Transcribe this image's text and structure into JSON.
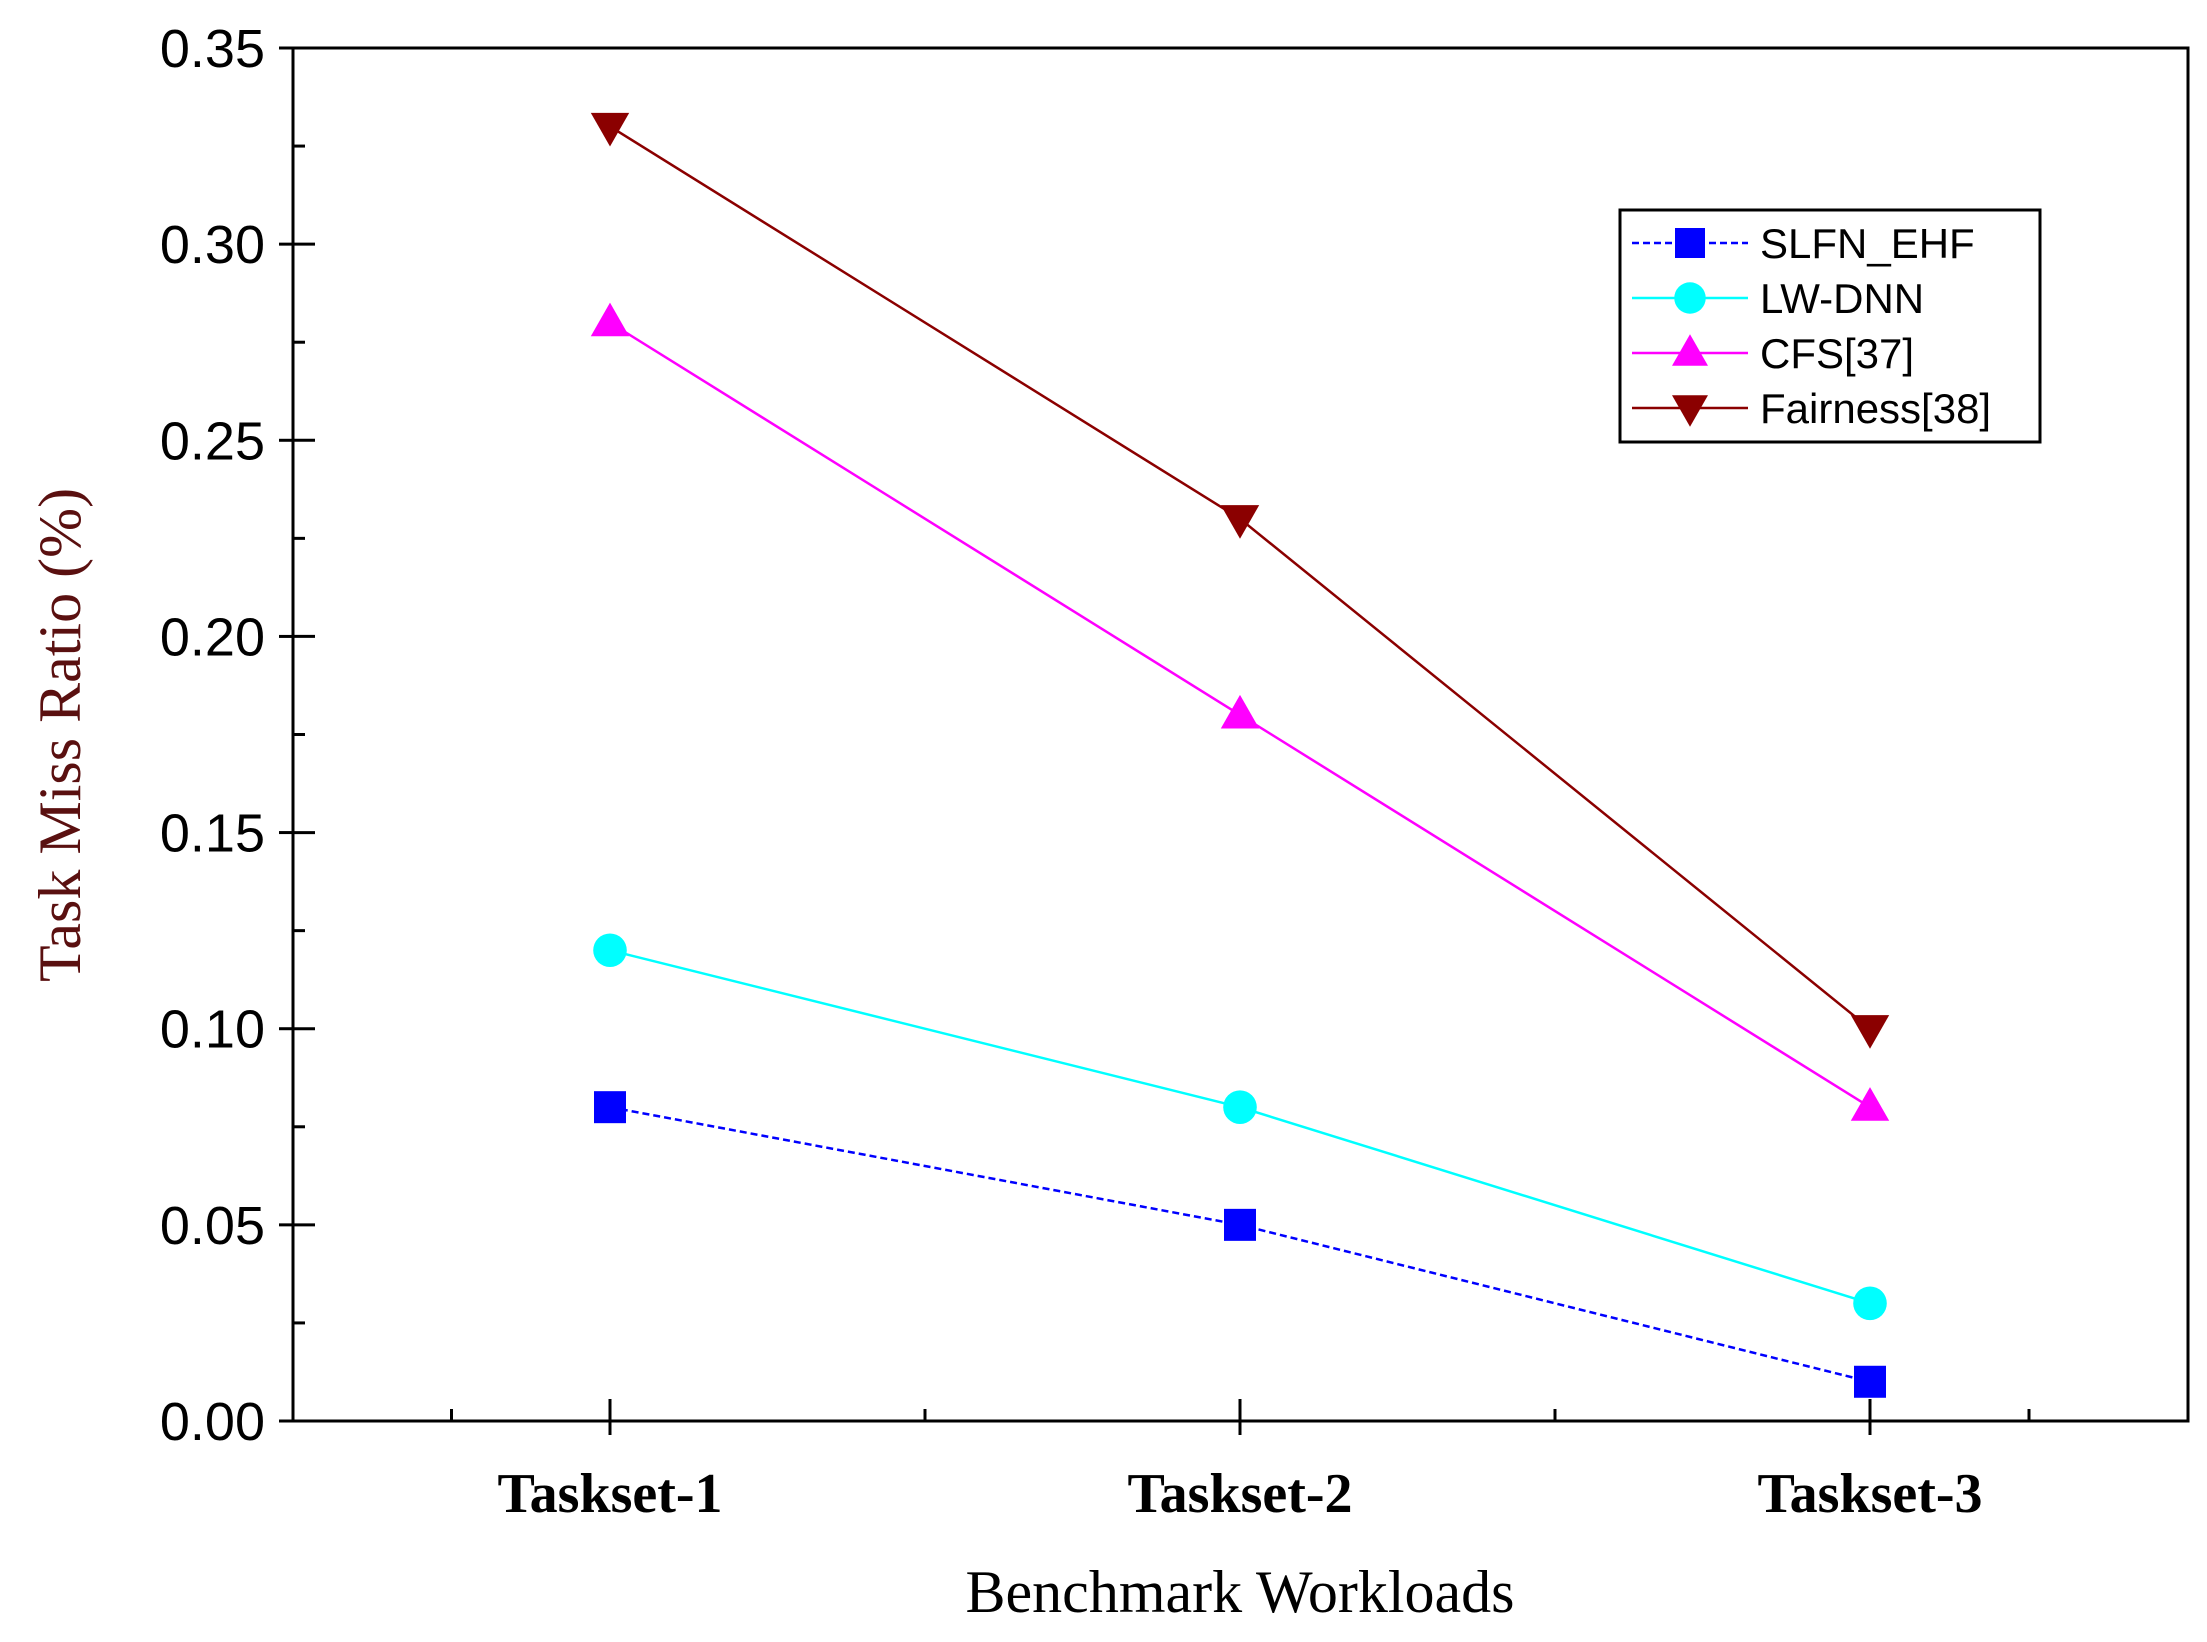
{
  "chart_data": {
    "type": "line",
    "title": "",
    "xlabel": "Benchmark Workloads",
    "ylabel": "Task Miss Ratio (%)",
    "categories": [
      "Taskset-1",
      "Taskset-2",
      "Taskset-3"
    ],
    "ylim": [
      0,
      0.35
    ],
    "yticks": [
      "0.00",
      "0.05",
      "0.10",
      "0.15",
      "0.20",
      "0.25",
      "0.30",
      "0.35"
    ],
    "legend_position": "top-right",
    "grid": false,
    "series": [
      {
        "name": "SLFN_EHF",
        "values": [
          0.08,
          0.05,
          0.01
        ],
        "color": "#0000ff",
        "marker": "square",
        "dashed": true
      },
      {
        "name": "LW-DNN",
        "values": [
          0.12,
          0.08,
          0.03
        ],
        "color": "#00ffff",
        "marker": "circle",
        "dashed": false
      },
      {
        "name": "CFS[37]",
        "values": [
          0.28,
          0.18,
          0.08
        ],
        "color": "#ff00ff",
        "marker": "triangle-up",
        "dashed": false
      },
      {
        "name": "Fairness[38]",
        "values": [
          0.33,
          0.23,
          0.1
        ],
        "color": "#8b0000",
        "marker": "triangle-down",
        "dashed": false
      }
    ],
    "ylabel_color": "#5a1010",
    "xlabel_color": "#000000"
  }
}
